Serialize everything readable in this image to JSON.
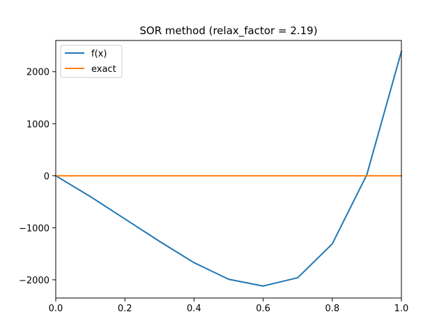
{
  "chart_data": {
    "type": "line",
    "title": "SOR method (relax_factor = 2.19)",
    "xlabel": "",
    "ylabel": "",
    "xlim": [
      0.0,
      1.0
    ],
    "ylim": [
      -2350,
      2600
    ],
    "xticks": [
      0.0,
      0.2,
      0.4,
      0.6,
      0.8,
      1.0
    ],
    "xtick_labels": [
      "0.0",
      "0.2",
      "0.4",
      "0.6",
      "0.8",
      "1.0"
    ],
    "yticks": [
      -2000,
      -1000,
      0,
      1000,
      2000
    ],
    "ytick_labels": [
      "−2000",
      "−1000",
      "0",
      "1000",
      "2000"
    ],
    "grid": false,
    "legend_position": "upper-left",
    "series": [
      {
        "name": "f(x)",
        "color": "#1f77b4",
        "x": [
          0.0,
          0.1,
          0.2,
          0.3,
          0.4,
          0.5,
          0.6,
          0.7,
          0.8,
          0.9,
          1.0
        ],
        "y": [
          0,
          -400,
          -830,
          -1260,
          -1670,
          -1990,
          -2120,
          -1960,
          -1310,
          20,
          2390
        ]
      },
      {
        "name": "exact",
        "color": "#ff7f0e",
        "x": [
          0.0,
          0.1,
          0.2,
          0.3,
          0.4,
          0.5,
          0.6,
          0.7,
          0.8,
          0.9,
          1.0
        ],
        "y": [
          0,
          0,
          0,
          0,
          0,
          0,
          0,
          0,
          0,
          0,
          0
        ]
      }
    ]
  }
}
